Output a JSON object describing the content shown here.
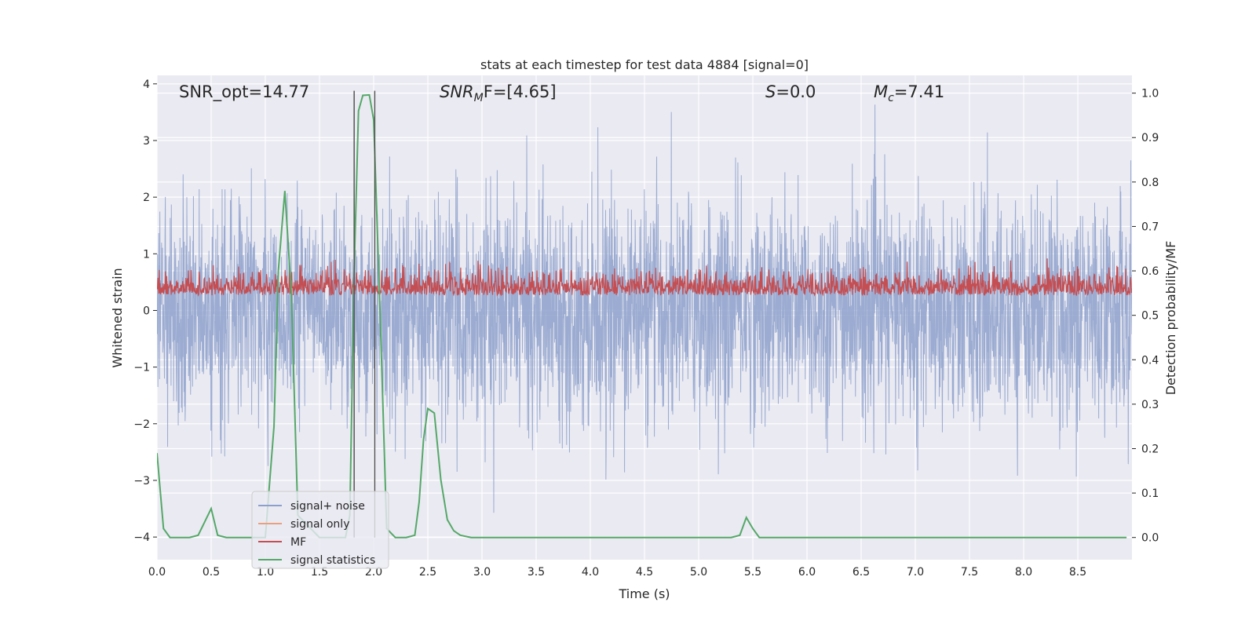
{
  "chart_data": {
    "type": "line",
    "title": "stats at each timestep for test data 4884 [signal=0]",
    "xlabel": "Time (s)",
    "ylabel_left": "Whitened strain",
    "ylabel_right": "Detection probability/MF",
    "xlim": [
      0.0,
      9.0
    ],
    "ylim_left": [
      -4.4,
      4.15
    ],
    "ylim_right": [
      -0.05,
      1.04
    ],
    "x_ticks": [
      "0.0",
      "0.5",
      "1.0",
      "1.5",
      "2.0",
      "2.5",
      "3.0",
      "3.5",
      "4.0",
      "4.5",
      "5.0",
      "5.5",
      "6.0",
      "6.5",
      "7.0",
      "7.5",
      "8.0",
      "8.5"
    ],
    "y_ticks_left": [
      "−4",
      "−3",
      "−2",
      "−1",
      "0",
      "1",
      "2",
      "3",
      "4"
    ],
    "y_ticks_right": [
      "0.0",
      "0.1",
      "0.2",
      "0.3",
      "0.4",
      "0.5",
      "0.6",
      "0.7",
      "0.8",
      "0.9",
      "1.0"
    ],
    "annotations": {
      "snr_opt": "SNR_opt=14.77",
      "snr_mf_main": "SNR",
      "snr_mf_sub": "M",
      "snr_mf_rest": "F=[4.65]",
      "s_main": "S",
      "s_rest": "=0.0",
      "mc_main": "M",
      "mc_sub": "c",
      "mc_rest": "=7.41"
    },
    "vertical_lines_x": [
      1.82,
      2.01
    ],
    "series": [
      {
        "name": "signal+ noise",
        "color": "#8da0cb",
        "axis": "left",
        "noise_sigma": 0.95,
        "y_range": [
          -4.0,
          4.0
        ]
      },
      {
        "name": "signal only",
        "color": "#e8a07e",
        "axis": "left",
        "values": []
      },
      {
        "name": "MF",
        "color": "#c44e52",
        "axis": "right",
        "baseline": 0.55,
        "y_range": [
          0.51,
          0.63
        ]
      },
      {
        "name": "signal statistics",
        "color": "#55a868",
        "axis": "right",
        "x": [
          0.0,
          0.06,
          0.12,
          0.2,
          0.3,
          0.38,
          0.5,
          0.56,
          0.64,
          0.8,
          1.0,
          1.08,
          1.12,
          1.18,
          1.24,
          1.3,
          1.5,
          1.6,
          1.7,
          1.74,
          1.78,
          1.82,
          1.86,
          1.9,
          1.96,
          2.0,
          2.06,
          2.12,
          2.2,
          2.3,
          2.38,
          2.42,
          2.46,
          2.5,
          2.56,
          2.62,
          2.68,
          2.74,
          2.8,
          2.9,
          3.0,
          3.5,
          4.0,
          4.5,
          5.0,
          5.3,
          5.38,
          5.44,
          5.5,
          5.56,
          6.0,
          6.5,
          7.0,
          7.5,
          8.0,
          8.5,
          8.95
        ],
        "values": [
          0.19,
          0.02,
          0.0,
          0.0,
          0.0,
          0.005,
          0.065,
          0.005,
          0.0,
          0.0,
          0.0,
          0.25,
          0.6,
          0.78,
          0.55,
          0.05,
          0.0,
          0.0,
          0.0,
          0.0,
          0.05,
          0.6,
          0.96,
          0.995,
          0.996,
          0.94,
          0.5,
          0.02,
          0.0,
          0.0,
          0.005,
          0.08,
          0.22,
          0.29,
          0.28,
          0.13,
          0.04,
          0.015,
          0.005,
          0.0,
          0.0,
          0.0,
          0.0,
          0.0,
          0.0,
          0.0,
          0.005,
          0.045,
          0.02,
          0.0,
          0.0,
          0.0,
          0.0,
          0.0,
          0.0,
          0.0,
          0.0
        ]
      }
    ],
    "legend": {
      "placement": "lower-left",
      "entries": [
        "signal+ noise",
        "signal only",
        "MF",
        "signal statistics"
      ]
    },
    "grid": true
  }
}
